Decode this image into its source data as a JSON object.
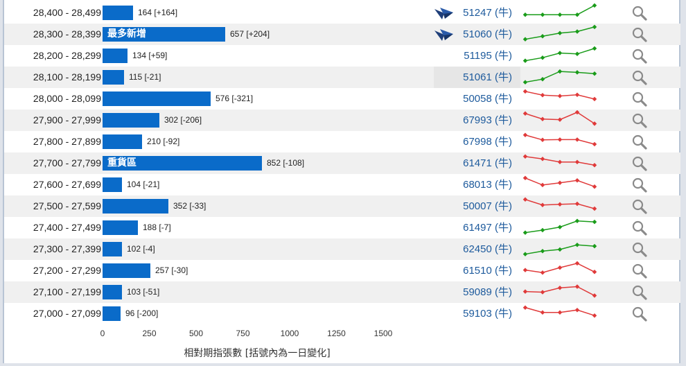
{
  "chart_data": {
    "type": "bar",
    "orientation": "horizontal",
    "xlabel": "相對期指張數 [括號內為一日變化]",
    "xlim": [
      0,
      1650
    ],
    "xticks": [
      "0",
      "250",
      "500",
      "750",
      "1000",
      "1250",
      "1500"
    ],
    "categories": [
      "28,400 - 28,499",
      "28,300 - 28,399",
      "28,200 - 28,299",
      "28,100 - 28,199",
      "28,000 - 28,099",
      "27,900 - 27,999",
      "27,800 - 27,899",
      "27,700 - 27,799",
      "27,600 - 27,699",
      "27,500 - 27,599",
      "27,400 - 27,499",
      "27,300 - 27,399",
      "27,200 - 27,299",
      "27,100 - 27,199",
      "27,000 - 27,099"
    ],
    "values": [
      164,
      657,
      134,
      115,
      576,
      302,
      210,
      852,
      104,
      352,
      188,
      102,
      257,
      103,
      96
    ],
    "value_labels": [
      "164 [+164]",
      "657 [+204]",
      "134 [+59]",
      "115 [-21]",
      "576 [-321]",
      "302 [-206]",
      "210 [-92]",
      "852 [-108]",
      "104 [-21]",
      "352 [-33]",
      "188 [-7]",
      "102 [-4]",
      "257 [-30]",
      "103 [-51]",
      "96 [-200]"
    ],
    "annotations": [
      {
        "row": 1,
        "text": "最多新增"
      },
      {
        "row": 7,
        "text": "重貨區"
      }
    ]
  },
  "rows": [
    {
      "contract": "51247 (牛)",
      "lens": true,
      "highlight": false,
      "trend_color": "#1a9c1a",
      "trend": [
        2,
        2,
        2,
        2,
        5
      ]
    },
    {
      "contract": "51060 (牛)",
      "lens": true,
      "highlight": false,
      "trend_color": "#1a9c1a",
      "trend": [
        1,
        2,
        3,
        3.5,
        5
      ]
    },
    {
      "contract": "51195 (牛)",
      "lens": false,
      "highlight": false,
      "trend_color": "#1a9c1a",
      "trend": [
        1,
        2,
        3.5,
        3.2,
        5
      ]
    },
    {
      "contract": "51061 (牛)",
      "lens": false,
      "highlight": true,
      "trend_color": "#1a9c1a",
      "trend": [
        1,
        2,
        4.5,
        4.2,
        3.8
      ]
    },
    {
      "contract": "50058 (牛)",
      "lens": false,
      "highlight": false,
      "trend_color": "#e03a3a",
      "trend": [
        5,
        3.8,
        3.5,
        3.9,
        2.5
      ]
    },
    {
      "contract": "67993 (牛)",
      "lens": false,
      "highlight": false,
      "trend_color": "#e03a3a",
      "trend": [
        4.8,
        3,
        2.8,
        5.2,
        1.5
      ]
    },
    {
      "contract": "67998 (牛)",
      "lens": false,
      "highlight": false,
      "trend_color": "#e03a3a",
      "trend": [
        4.8,
        3.2,
        3.3,
        3.3,
        1.8
      ]
    },
    {
      "contract": "61471 (牛)",
      "lens": false,
      "highlight": false,
      "trend_color": "#e03a3a",
      "trend": [
        4.8,
        4,
        3,
        3,
        2
      ]
    },
    {
      "contract": "68013 (牛)",
      "lens": false,
      "highlight": false,
      "trend_color": "#e03a3a",
      "trend": [
        4.8,
        2.5,
        3.2,
        4,
        2
      ]
    },
    {
      "contract": "50007 (牛)",
      "lens": false,
      "highlight": false,
      "trend_color": "#e03a3a",
      "trend": [
        4.8,
        3,
        3.2,
        3.4,
        1.8
      ]
    },
    {
      "contract": "61497 (牛)",
      "lens": false,
      "highlight": false,
      "trend_color": "#1a9c1a",
      "trend": [
        1,
        1.8,
        2.8,
        4.8,
        4.5
      ]
    },
    {
      "contract": "62450 (牛)",
      "lens": false,
      "highlight": false,
      "trend_color": "#1a9c1a",
      "trend": [
        1,
        2,
        2.5,
        4,
        3.6
      ]
    },
    {
      "contract": "61510 (牛)",
      "lens": false,
      "highlight": false,
      "trend_color": "#e03a3a",
      "trend": [
        2.8,
        2,
        3.6,
        5,
        2.2
      ]
    },
    {
      "contract": "59089 (牛)",
      "lens": false,
      "highlight": false,
      "trend_color": "#e03a3a",
      "trend": [
        2.8,
        2.6,
        4,
        4.4,
        1.5
      ]
    },
    {
      "contract": "59103 (牛)",
      "lens": false,
      "highlight": false,
      "trend_color": "#e03a3a",
      "trend": [
        4.6,
        3,
        3,
        3.8,
        2
      ]
    }
  ],
  "icons": {
    "lens": "warrant-lens-icon",
    "search": "search-icon"
  }
}
